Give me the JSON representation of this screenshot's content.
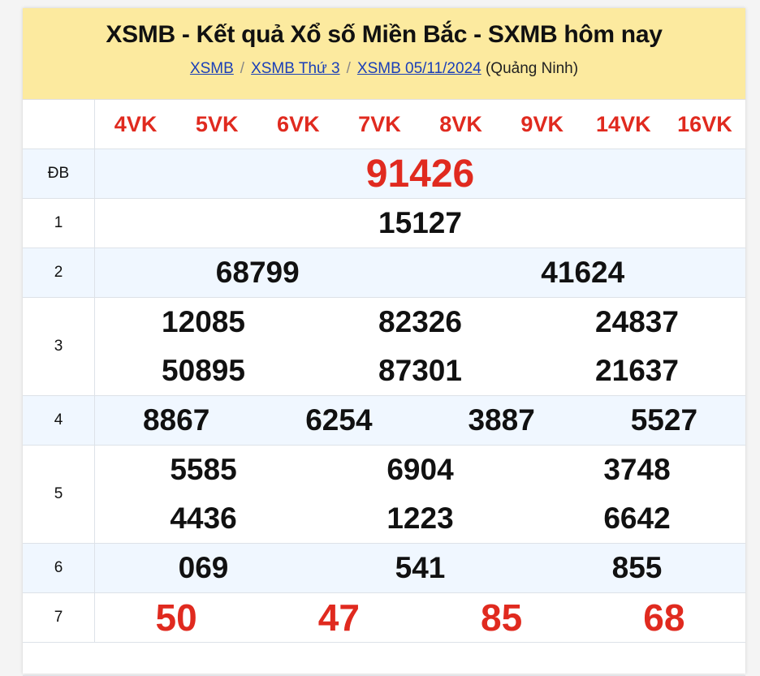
{
  "header": {
    "title": "XSMB - Kết quả Xổ số Miền Bắc - SXMB hôm nay",
    "breadcrumb": [
      {
        "label": "XSMB"
      },
      {
        "label": "XSMB Thứ 3"
      },
      {
        "label": "XSMB 05/11/2024"
      }
    ],
    "separator": "/",
    "province": "(Quảng Ninh)"
  },
  "codes": [
    "4VK",
    "5VK",
    "6VK",
    "7VK",
    "8VK",
    "9VK",
    "14VK",
    "16VK"
  ],
  "prizes": [
    {
      "label": "ĐB",
      "lines": [
        [
          "91426"
        ]
      ]
    },
    {
      "label": "1",
      "lines": [
        [
          "15127"
        ]
      ]
    },
    {
      "label": "2",
      "lines": [
        [
          "68799",
          "41624"
        ]
      ]
    },
    {
      "label": "3",
      "lines": [
        [
          "12085",
          "82326",
          "24837"
        ],
        [
          "50895",
          "87301",
          "21637"
        ]
      ]
    },
    {
      "label": "4",
      "lines": [
        [
          "8867",
          "6254",
          "3887",
          "5527"
        ]
      ]
    },
    {
      "label": "5",
      "lines": [
        [
          "5585",
          "6904",
          "3748"
        ],
        [
          "4436",
          "1223",
          "6642"
        ]
      ]
    },
    {
      "label": "6",
      "lines": [
        [
          "069",
          "541",
          "855"
        ]
      ]
    },
    {
      "label": "7",
      "lines": [
        [
          "50",
          "47",
          "85",
          "68"
        ]
      ]
    }
  ],
  "colors": {
    "header_bg": "#fcea9f",
    "accent_red": "#e02a1f",
    "link": "#1a3fb8",
    "alt_row": "#f0f7ff"
  }
}
